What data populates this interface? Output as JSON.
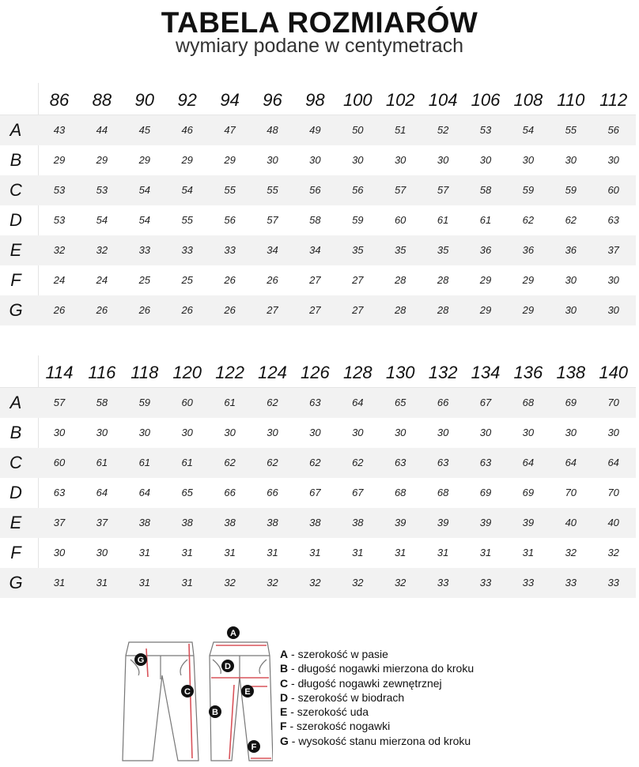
{
  "title": "TABELA ROZMIARÓW",
  "subtitle": "wymiary podane w centymetrach",
  "tables": [
    {
      "sizes": [
        "86",
        "88",
        "90",
        "92",
        "94",
        "96",
        "98",
        "100",
        "102",
        "104",
        "106",
        "108",
        "110",
        "112"
      ],
      "rows": [
        {
          "label": "A",
          "values": [
            "43",
            "44",
            "45",
            "46",
            "47",
            "48",
            "49",
            "50",
            "51",
            "52",
            "53",
            "54",
            "55",
            "56"
          ]
        },
        {
          "label": "B",
          "values": [
            "29",
            "29",
            "29",
            "29",
            "29",
            "30",
            "30",
            "30",
            "30",
            "30",
            "30",
            "30",
            "30",
            "30"
          ]
        },
        {
          "label": "C",
          "values": [
            "53",
            "53",
            "54",
            "54",
            "55",
            "55",
            "56",
            "56",
            "57",
            "57",
            "58",
            "59",
            "59",
            "60"
          ]
        },
        {
          "label": "D",
          "values": [
            "53",
            "54",
            "54",
            "55",
            "56",
            "57",
            "58",
            "59",
            "60",
            "61",
            "61",
            "62",
            "62",
            "63"
          ]
        },
        {
          "label": "E",
          "values": [
            "32",
            "32",
            "33",
            "33",
            "33",
            "34",
            "34",
            "35",
            "35",
            "35",
            "36",
            "36",
            "36",
            "37"
          ]
        },
        {
          "label": "F",
          "values": [
            "24",
            "24",
            "25",
            "25",
            "26",
            "26",
            "27",
            "27",
            "28",
            "28",
            "29",
            "29",
            "30",
            "30"
          ]
        },
        {
          "label": "G",
          "values": [
            "26",
            "26",
            "26",
            "26",
            "26",
            "27",
            "27",
            "27",
            "28",
            "28",
            "29",
            "29",
            "30",
            "30"
          ]
        }
      ]
    },
    {
      "sizes": [
        "114",
        "116",
        "118",
        "120",
        "122",
        "124",
        "126",
        "128",
        "130",
        "132",
        "134",
        "136",
        "138",
        "140"
      ],
      "rows": [
        {
          "label": "A",
          "values": [
            "57",
            "58",
            "59",
            "60",
            "61",
            "62",
            "63",
            "64",
            "65",
            "66",
            "67",
            "68",
            "69",
            "70"
          ]
        },
        {
          "label": "B",
          "values": [
            "30",
            "30",
            "30",
            "30",
            "30",
            "30",
            "30",
            "30",
            "30",
            "30",
            "30",
            "30",
            "30",
            "30"
          ]
        },
        {
          "label": "C",
          "values": [
            "60",
            "61",
            "61",
            "61",
            "62",
            "62",
            "62",
            "62",
            "63",
            "63",
            "63",
            "64",
            "64",
            "64"
          ]
        },
        {
          "label": "D",
          "values": [
            "63",
            "64",
            "64",
            "65",
            "66",
            "66",
            "67",
            "67",
            "68",
            "68",
            "69",
            "69",
            "70",
            "70"
          ]
        },
        {
          "label": "E",
          "values": [
            "37",
            "37",
            "38",
            "38",
            "38",
            "38",
            "38",
            "38",
            "39",
            "39",
            "39",
            "39",
            "40",
            "40"
          ]
        },
        {
          "label": "F",
          "values": [
            "30",
            "30",
            "31",
            "31",
            "31",
            "31",
            "31",
            "31",
            "31",
            "31",
            "31",
            "31",
            "32",
            "32"
          ]
        },
        {
          "label": "G",
          "values": [
            "31",
            "31",
            "31",
            "31",
            "32",
            "32",
            "32",
            "32",
            "32",
            "33",
            "33",
            "33",
            "33",
            "33"
          ]
        }
      ]
    }
  ],
  "legend": [
    {
      "key": "A",
      "text": " - szerokość w pasie"
    },
    {
      "key": "B",
      "text": " - długość nogawki mierzona do kroku"
    },
    {
      "key": "C",
      "text": " - długość nogawki zewnętrznej"
    },
    {
      "key": "D",
      "text": " -  szerokość w biodrach"
    },
    {
      "key": "E",
      "text": " - szerokość uda"
    },
    {
      "key": "F",
      "text": " - szerokość nogawki"
    },
    {
      "key": "G",
      "text": " - wysokość stanu mierzona od kroku"
    }
  ],
  "diagram": {
    "markers": [
      "A",
      "B",
      "C",
      "D",
      "E",
      "F",
      "G"
    ],
    "arrow_color": "#d9535a",
    "marker_color": "#111111",
    "row_shade_color": "#f2f2f2"
  }
}
